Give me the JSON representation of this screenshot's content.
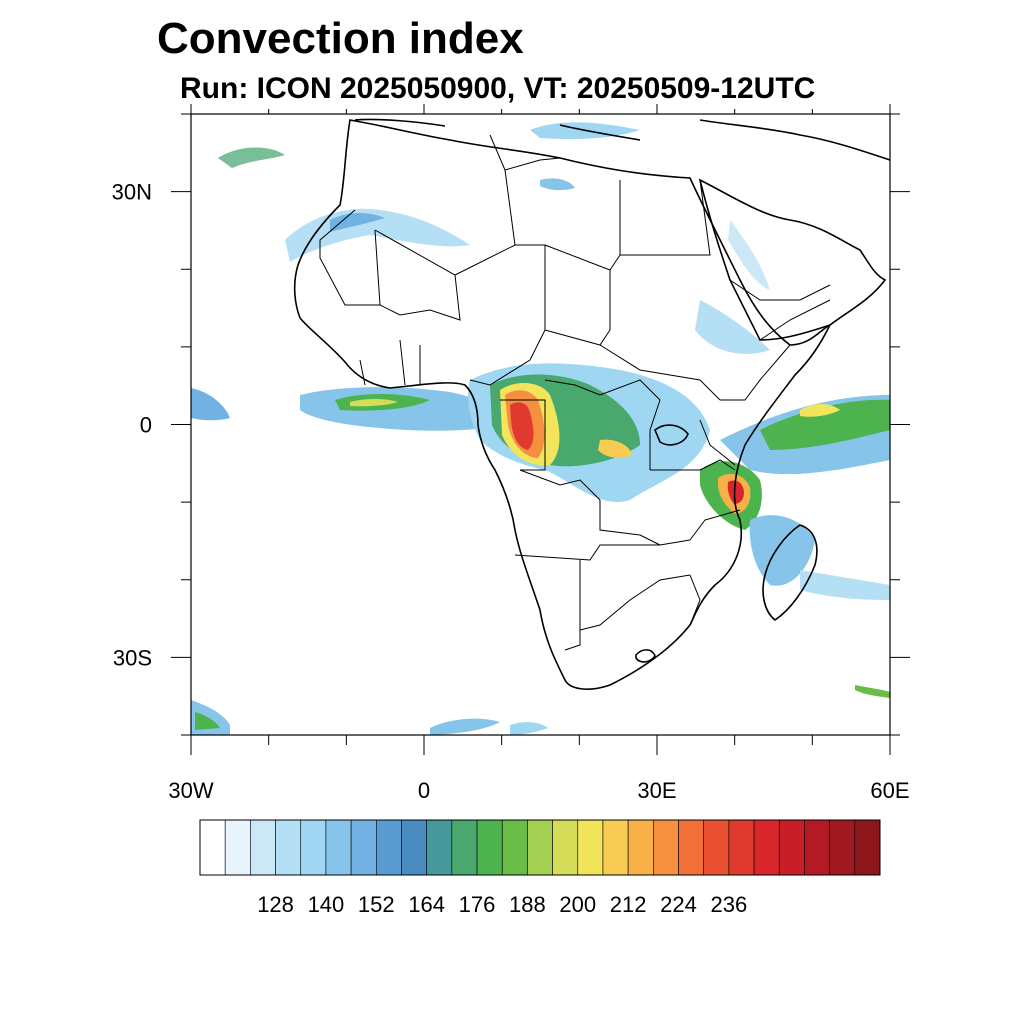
{
  "header": {
    "title": "Convection index",
    "subtitle": "Run: ICON 2025050900,  VT: 20250509-12UTC"
  },
  "map": {
    "lon_range": [
      -30,
      60
    ],
    "lat_range": [
      -40,
      40
    ],
    "lat_ticks": [
      {
        "value": 30,
        "label": "30N"
      },
      {
        "value": 0,
        "label": "0"
      },
      {
        "value": -30,
        "label": "30S"
      }
    ],
    "lon_ticks": [
      {
        "value": -30,
        "label": "30W"
      },
      {
        "value": 0,
        "label": "0"
      },
      {
        "value": 30,
        "label": "30E"
      },
      {
        "value": 60,
        "label": "60E"
      }
    ]
  },
  "colorbar": {
    "labels": [
      "128",
      "140",
      "152",
      "164",
      "176",
      "188",
      "200",
      "212",
      "224",
      "236"
    ],
    "colors": [
      "#ffffff",
      "#e8f4fb",
      "#cce8f7",
      "#b4dff4",
      "#9fd6f2",
      "#86c4ea",
      "#72b2e2",
      "#5a9bd2",
      "#4a8cc0",
      "#46999a",
      "#48a86e",
      "#4cb34e",
      "#6abb48",
      "#a4cf50",
      "#d4dc58",
      "#f2e55c",
      "#f8cc52",
      "#f8b048",
      "#f49040",
      "#f07038",
      "#e85030",
      "#e03a2e",
      "#d8262a",
      "#c81e28",
      "#b41a24",
      "#a01820",
      "#8c161c"
    ]
  }
}
